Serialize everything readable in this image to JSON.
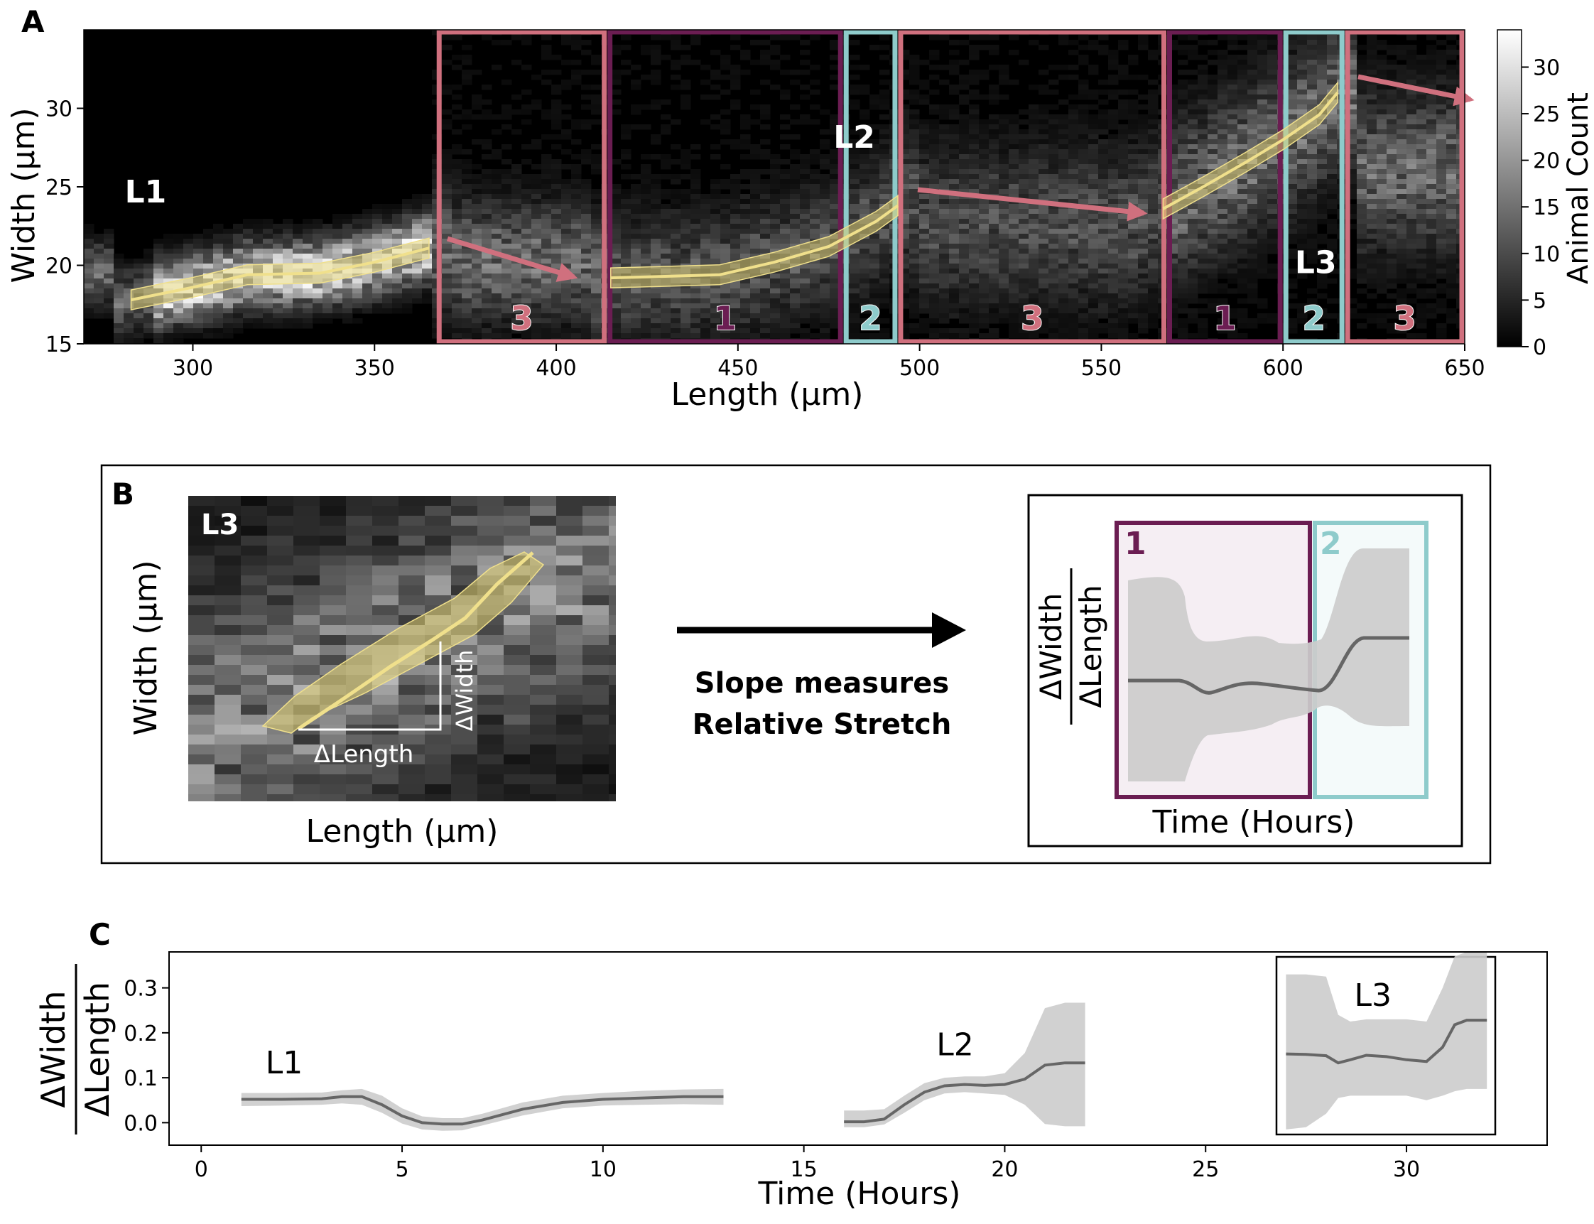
{
  "colors": {
    "stage1": "#6b1d52",
    "stage2": "#8ecbcb",
    "stage3": "#d0707e",
    "trace": "#f0e08c",
    "band": "#cccccc",
    "line": "#666666"
  },
  "panelA": {
    "letter": "A",
    "xlabel": "Length (µm)",
    "ylabel": "Width (µm)",
    "colorbar_label": "Animal Count",
    "larva_labels": [
      "L1",
      "L2",
      "L3"
    ],
    "stage_labels": [
      "3",
      "1",
      "2",
      "3",
      "1",
      "2",
      "3"
    ]
  },
  "panelB": {
    "letter": "B",
    "inset_label": "L3",
    "xlabel": "Length (µm)",
    "ylabel": "Width (µm)",
    "dlength": "ΔLength",
    "dwidth": "ΔWidth",
    "caption_line1": "Slope measures",
    "caption_line2": "Relative Stretch",
    "stage1": "1",
    "stage2": "2",
    "plot_xlabel": "Time (Hours)",
    "plot_ylabel_num": "ΔWidth",
    "plot_ylabel_den": "ΔLength"
  },
  "panelC": {
    "letter": "C",
    "ylabel_num": "ΔWidth",
    "ylabel_den": "ΔLength",
    "inset_label": "L3"
  },
  "chart_data": [
    {
      "type": "heatmap",
      "xlabel": "Length (µm)",
      "ylabel": "Width (µm)",
      "xlim": [
        270,
        650
      ],
      "ylim": [
        15,
        35
      ],
      "xticks": [
        300,
        350,
        400,
        450,
        500,
        550,
        600,
        650
      ],
      "yticks": [
        15,
        20,
        25,
        30
      ],
      "colorbar": {
        "label": "Animal Count",
        "range": [
          0,
          34
        ],
        "ticks": [
          0,
          5,
          10,
          15,
          20,
          25,
          30
        ]
      },
      "stage_regions": [
        {
          "stage": "3",
          "x": [
            367,
            414
          ]
        },
        {
          "stage": "1",
          "x": [
            414,
            479
          ]
        },
        {
          "stage": "2",
          "x": [
            479,
            494
          ]
        },
        {
          "stage": "3",
          "x": [
            494,
            568
          ]
        },
        {
          "stage": "1",
          "x": [
            568,
            600
          ]
        },
        {
          "stage": "2",
          "x": [
            600,
            617
          ]
        },
        {
          "stage": "3",
          "x": [
            617,
            650
          ]
        }
      ],
      "growth_traces": [
        {
          "name": "L1",
          "x": [
            283,
            300,
            315,
            335,
            350,
            365
          ],
          "y": [
            17.8,
            18.6,
            19.4,
            19.5,
            20.2,
            21.1
          ],
          "label_at": [
            287,
            24
          ]
        },
        {
          "name": "L2",
          "x": [
            415,
            430,
            445,
            460,
            475,
            488,
            494
          ],
          "y": [
            19.2,
            19.3,
            19.4,
            20.2,
            21.2,
            22.8,
            23.8
          ],
          "label_at": [
            482,
            27.5
          ]
        },
        {
          "name": "L3",
          "x": [
            567,
            578,
            590,
            600,
            610,
            615
          ],
          "y": [
            23.6,
            25.0,
            26.6,
            28.0,
            29.6,
            31.0
          ],
          "label_at": [
            609,
            19.5
          ]
        }
      ]
    },
    {
      "type": "line",
      "xlabel": "Time (Hours)",
      "ylabel": "ΔWidth / ΔLength",
      "xlim": [
        -0.8,
        33.5
      ],
      "ylim": [
        -0.05,
        0.38
      ],
      "xticks": [
        0,
        5,
        10,
        15,
        20,
        25,
        30
      ],
      "yticks": [
        0.0,
        0.1,
        0.2,
        0.3
      ],
      "series": [
        {
          "name": "L1",
          "x": [
            1,
            2,
            3,
            3.5,
            4,
            4.5,
            5,
            5.5,
            6,
            6.5,
            7,
            8,
            9,
            10,
            11,
            12,
            13
          ],
          "y": [
            0.052,
            0.052,
            0.053,
            0.058,
            0.058,
            0.04,
            0.015,
            0.0,
            -0.003,
            -0.003,
            0.006,
            0.03,
            0.045,
            0.052,
            0.055,
            0.058,
            0.058
          ],
          "lower": [
            0.037,
            0.038,
            0.04,
            0.043,
            0.04,
            0.022,
            -0.002,
            -0.015,
            -0.018,
            -0.017,
            -0.006,
            0.016,
            0.032,
            0.038,
            0.04,
            0.041,
            0.04
          ],
          "upper": [
            0.066,
            0.066,
            0.067,
            0.072,
            0.075,
            0.06,
            0.032,
            0.014,
            0.01,
            0.01,
            0.02,
            0.045,
            0.06,
            0.066,
            0.071,
            0.074,
            0.075
          ]
        },
        {
          "name": "L2",
          "x": [
            16,
            16.5,
            17,
            17.5,
            18,
            18.5,
            19,
            19.5,
            20,
            20.5,
            21,
            21.5,
            22
          ],
          "y": [
            0.002,
            0.002,
            0.008,
            0.04,
            0.068,
            0.082,
            0.085,
            0.083,
            0.085,
            0.097,
            0.128,
            0.133,
            0.133
          ],
          "lower": [
            -0.01,
            -0.01,
            -0.004,
            0.022,
            0.05,
            0.065,
            0.068,
            0.065,
            0.062,
            0.04,
            -0.003,
            -0.008,
            -0.008
          ],
          "upper": [
            0.027,
            0.027,
            0.03,
            0.06,
            0.088,
            0.1,
            0.103,
            0.103,
            0.11,
            0.155,
            0.255,
            0.267,
            0.267
          ]
        },
        {
          "name": "L3",
          "x": [
            27,
            27.5,
            28,
            28.3,
            28.6,
            29,
            29.5,
            30,
            30.5,
            30.9,
            31.2,
            31.5,
            32
          ],
          "y": [
            0.153,
            0.152,
            0.149,
            0.133,
            0.14,
            0.15,
            0.147,
            0.14,
            0.136,
            0.168,
            0.218,
            0.228,
            0.228
          ],
          "lower": [
            -0.015,
            -0.01,
            0.02,
            0.055,
            0.06,
            0.06,
            0.06,
            0.06,
            0.05,
            0.06,
            0.07,
            0.075,
            0.075
          ],
          "upper": [
            0.33,
            0.33,
            0.325,
            0.24,
            0.225,
            0.23,
            0.23,
            0.23,
            0.225,
            0.3,
            0.37,
            0.38,
            0.38
          ]
        }
      ]
    }
  ]
}
